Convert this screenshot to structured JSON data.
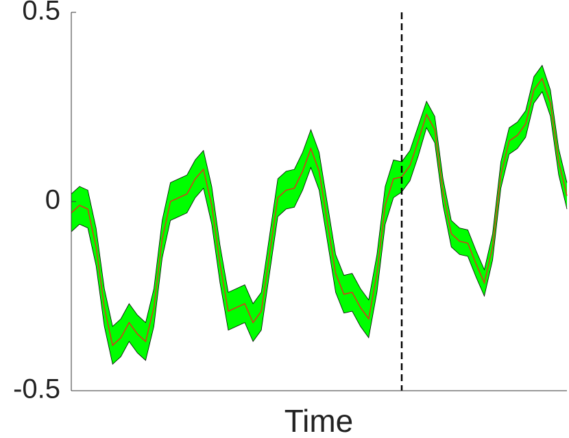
{
  "chart_data": {
    "type": "line",
    "xlabel": "Time",
    "x": [
      0,
      1,
      2,
      3,
      4,
      5,
      6,
      7,
      8,
      9,
      10,
      11,
      12,
      13,
      14,
      15,
      16,
      17,
      18,
      19,
      20,
      21,
      22,
      23,
      24,
      25,
      26,
      27,
      28,
      29,
      30,
      31,
      32,
      33,
      34,
      35,
      36,
      37,
      38,
      39,
      40,
      41,
      42,
      43,
      44,
      45,
      46,
      47,
      48,
      49,
      50,
      51,
      52,
      53,
      54,
      55,
      56,
      57,
      58,
      59,
      60
    ],
    "xlim": [
      0,
      60
    ],
    "ylim": [
      -0.5,
      0.5
    ],
    "yticks": [
      -0.5,
      0,
      0.5
    ],
    "series": [
      {
        "color": "#e0301e",
        "values": [
          -0.03,
          -0.01,
          -0.02,
          -0.12,
          -0.28,
          -0.38,
          -0.36,
          -0.32,
          -0.35,
          -0.37,
          -0.28,
          -0.1,
          0.0,
          0.01,
          0.02,
          0.06,
          0.085,
          -0.01,
          -0.165,
          -0.29,
          -0.28,
          -0.27,
          -0.32,
          -0.29,
          -0.14,
          0.01,
          0.03,
          0.035,
          0.08,
          0.14,
          0.08,
          -0.055,
          -0.19,
          -0.245,
          -0.24,
          -0.28,
          -0.31,
          -0.19,
          -0.01,
          0.06,
          0.065,
          0.095,
          0.16,
          0.23,
          0.19,
          0.025,
          -0.085,
          -0.105,
          -0.11,
          -0.165,
          -0.215,
          -0.12,
          0.07,
          0.16,
          0.175,
          0.205,
          0.295,
          0.325,
          0.26,
          0.105,
          0.015
        ]
      }
    ],
    "band": {
      "color": "#00ff00",
      "upper": [
        0.02,
        0.04,
        0.03,
        -0.07,
        -0.23,
        -0.33,
        -0.31,
        -0.27,
        -0.3,
        -0.32,
        -0.23,
        -0.05,
        0.05,
        0.06,
        0.07,
        0.11,
        0.135,
        0.04,
        -0.115,
        -0.24,
        -0.23,
        -0.22,
        -0.27,
        -0.24,
        -0.09,
        0.06,
        0.08,
        0.085,
        0.13,
        0.19,
        0.13,
        -0.005,
        -0.14,
        -0.195,
        -0.19,
        -0.23,
        -0.26,
        -0.14,
        0.04,
        0.11,
        0.105,
        0.135,
        0.2,
        0.265,
        0.225,
        0.06,
        -0.05,
        -0.07,
        -0.075,
        -0.13,
        -0.18,
        -0.085,
        0.105,
        0.195,
        0.21,
        0.24,
        0.33,
        0.36,
        0.295,
        0.14,
        0.05
      ],
      "lower": [
        -0.08,
        -0.06,
        -0.07,
        -0.17,
        -0.33,
        -0.43,
        -0.41,
        -0.37,
        -0.4,
        -0.42,
        -0.33,
        -0.15,
        -0.05,
        -0.04,
        -0.03,
        0.01,
        0.035,
        -0.06,
        -0.215,
        -0.34,
        -0.33,
        -0.32,
        -0.37,
        -0.34,
        -0.19,
        -0.04,
        -0.02,
        -0.015,
        0.03,
        0.09,
        0.03,
        -0.105,
        -0.24,
        -0.295,
        -0.29,
        -0.33,
        -0.36,
        -0.24,
        -0.06,
        0.01,
        0.025,
        0.055,
        0.12,
        0.195,
        0.155,
        -0.01,
        -0.12,
        -0.14,
        -0.145,
        -0.2,
        -0.25,
        -0.155,
        0.035,
        0.125,
        0.14,
        0.17,
        0.26,
        0.29,
        0.225,
        0.07,
        -0.02
      ]
    },
    "vline": {
      "x": 40,
      "color": "#000000"
    }
  }
}
